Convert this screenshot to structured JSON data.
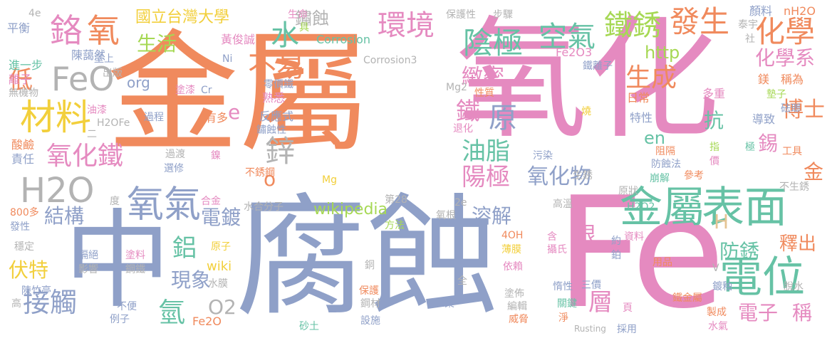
{
  "colors": {
    "orange": "#f08a5d",
    "pink": "#e58ac0",
    "blue": "#8fa0c8",
    "green": "#66c2a5",
    "yellow": "#f2cf3b",
    "olive": "#a6d854",
    "gray": "#b3b3b3",
    "tan": "#e5c494"
  },
  "words": [
    {
      "t": "金屬",
      "c": "orange"
    },
    {
      "t": "氧化",
      "c": "pink"
    },
    {
      "t": "腐蝕",
      "c": "blue"
    },
    {
      "t": "Fe",
      "c": "pink"
    },
    {
      "t": "中",
      "c": "blue"
    },
    {
      "t": "金屬",
      "c": "green"
    },
    {
      "t": "表面",
      "c": "green"
    },
    {
      "t": "電位",
      "c": "green"
    },
    {
      "t": "H2O",
      "c": "gray"
    },
    {
      "t": "FeO",
      "c": "gray"
    },
    {
      "t": "氧氣",
      "c": "blue"
    },
    {
      "t": "鉻",
      "c": "pink"
    },
    {
      "t": "氧",
      "c": "orange"
    },
    {
      "t": "材料",
      "c": "yellow"
    },
    {
      "t": "氧化鐵",
      "c": "pink"
    },
    {
      "t": "國立台灣大學",
      "c": "yellow"
    },
    {
      "t": "生活",
      "c": "olive"
    },
    {
      "t": "水",
      "c": "green"
    },
    {
      "t": "不易",
      "c": "orange"
    },
    {
      "t": "環境",
      "c": "pink"
    },
    {
      "t": "陰極",
      "c": "green"
    },
    {
      "t": "空氣",
      "c": "green"
    },
    {
      "t": "鐵銹",
      "c": "olive"
    },
    {
      "t": "發生",
      "c": "orange"
    },
    {
      "t": "化學",
      "c": "orange"
    },
    {
      "t": "化學系",
      "c": "pink"
    },
    {
      "t": "http",
      "c": "olive"
    },
    {
      "t": "鏽蝕",
      "c": "gray"
    },
    {
      "t": "緻密",
      "c": "pink"
    },
    {
      "t": "原",
      "c": "blue"
    },
    {
      "t": "生成",
      "c": "orange"
    },
    {
      "t": "鐵",
      "c": "pink"
    },
    {
      "t": "鋅",
      "c": "gray"
    },
    {
      "t": "油脂",
      "c": "green"
    },
    {
      "t": "陽極",
      "c": "pink"
    },
    {
      "t": "氧化物",
      "c": "blue"
    },
    {
      "t": "博士",
      "c": "orange"
    },
    {
      "t": "抗",
      "c": "green"
    },
    {
      "t": "錫",
      "c": "pink"
    },
    {
      "t": "en",
      "c": "green"
    },
    {
      "t": "金",
      "c": "orange"
    },
    {
      "t": "結構",
      "c": "blue"
    },
    {
      "t": "電鍍",
      "c": "blue"
    },
    {
      "t": "溶解",
      "c": "blue"
    },
    {
      "t": "鋁",
      "c": "green"
    },
    {
      "t": "現象",
      "c": "blue"
    },
    {
      "t": "伏特",
      "c": "yellow"
    },
    {
      "t": "接觸",
      "c": "blue"
    },
    {
      "t": "氫",
      "c": "green"
    },
    {
      "t": "O2",
      "c": "gray"
    },
    {
      "t": "wiki",
      "c": "yellow"
    },
    {
      "t": "銀",
      "c": "pink"
    },
    {
      "t": "防銹",
      "c": "green"
    },
    {
      "t": "釋出",
      "c": "orange"
    },
    {
      "t": "層",
      "c": "pink"
    },
    {
      "t": "電子",
      "c": "pink"
    },
    {
      "t": "稱",
      "c": "pink"
    },
    {
      "t": "wikipedia",
      "c": "olive"
    },
    {
      "t": "低",
      "c": "orange"
    },
    {
      "t": "e",
      "c": "pink"
    },
    {
      "t": "o",
      "c": "orange"
    },
    {
      "t": "org",
      "c": "blue"
    },
    {
      "t": "H",
      "c": "tan"
    },
    {
      "t": "4e",
      "c": "gray"
    },
    {
      "t": "平衡",
      "c": "blue"
    },
    {
      "t": "陳藹然",
      "c": "blue"
    },
    {
      "t": "進一步",
      "c": "green"
    },
    {
      "t": "離子",
      "c": "pink"
    },
    {
      "t": "無機物",
      "c": "gray"
    },
    {
      "t": "塗上",
      "c": "blue"
    },
    {
      "t": "出版",
      "c": "gray"
    },
    {
      "t": "生命",
      "c": "pink"
    },
    {
      "t": "具",
      "c": "olive"
    },
    {
      "t": "黃俊誠",
      "c": "pink"
    },
    {
      "t": "Corrosion",
      "c": "green"
    },
    {
      "t": "Corrosion3",
      "c": "gray"
    },
    {
      "t": "保護性",
      "c": "gray"
    },
    {
      "t": "步驟",
      "c": "gray"
    },
    {
      "t": "顏料",
      "c": "blue"
    },
    {
      "t": "nH2O",
      "c": "orange"
    },
    {
      "t": "泰宇",
      "c": "gray"
    },
    {
      "t": "社",
      "c": "gray"
    },
    {
      "t": "Fe2O3",
      "c": "pink"
    },
    {
      "t": "鐵離子",
      "c": "blue"
    },
    {
      "t": "鎂",
      "c": "orange"
    },
    {
      "t": "稱為",
      "c": "orange"
    },
    {
      "t": "Ni",
      "c": "blue"
    },
    {
      "t": "塗漆",
      "c": "pink"
    },
    {
      "t": "Cr",
      "c": "blue"
    },
    {
      "t": "零價鐵",
      "c": "blue"
    },
    {
      "t": "Mg2",
      "c": "gray"
    },
    {
      "t": "性質",
      "c": "orange"
    },
    {
      "t": "熟悉",
      "c": "pink"
    },
    {
      "t": "日常",
      "c": "orange"
    },
    {
      "t": "多重",
      "c": "pink"
    },
    {
      "t": "墊子",
      "c": "olive"
    },
    {
      "t": "砝瑯",
      "c": "blue"
    },
    {
      "t": "油漆",
      "c": "pink"
    },
    {
      "t": "過程",
      "c": "blue"
    },
    {
      "t": "有多",
      "c": "orange"
    },
    {
      "t": "反應式",
      "c": "blue"
    },
    {
      "t": "鏽蝕性",
      "c": "blue"
    },
    {
      "t": "H2OFe",
      "c": "gray"
    },
    {
      "t": "二",
      "c": "gray"
    },
    {
      "t": "燒",
      "c": "yellow"
    },
    {
      "t": "退化",
      "c": "pink"
    },
    {
      "t": "特性",
      "c": "blue"
    },
    {
      "t": "導致",
      "c": "blue"
    },
    {
      "t": "極",
      "c": "green"
    },
    {
      "t": "酸鹼",
      "c": "orange"
    },
    {
      "t": "責任",
      "c": "blue"
    },
    {
      "t": "過渡",
      "c": "gray"
    },
    {
      "t": "選修",
      "c": "blue"
    },
    {
      "t": "鎳",
      "c": "pink"
    },
    {
      "t": "阻隔",
      "c": "orange"
    },
    {
      "t": "防蝕法",
      "c": "blue"
    },
    {
      "t": "指",
      "c": "olive"
    },
    {
      "t": "價",
      "c": "pink"
    },
    {
      "t": "工具",
      "c": "orange"
    },
    {
      "t": "不銹鋼",
      "c": "orange"
    },
    {
      "t": "污染",
      "c": "blue"
    },
    {
      "t": "生銹",
      "c": "gray"
    },
    {
      "t": "崩解",
      "c": "green"
    },
    {
      "t": "參考",
      "c": "orange"
    },
    {
      "t": "Mg",
      "c": "yellow"
    },
    {
      "t": "不生銹",
      "c": "gray"
    },
    {
      "t": "第28",
      "c": "gray"
    },
    {
      "t": "2e",
      "c": "gray"
    },
    {
      "t": "原狀",
      "c": "gray"
    },
    {
      "t": "H2O2",
      "c": "green"
    },
    {
      "t": "800多",
      "c": "orange"
    },
    {
      "t": "度",
      "c": "gray"
    },
    {
      "t": "合金",
      "c": "pink"
    },
    {
      "t": "水合分子",
      "c": "gray"
    },
    {
      "t": "氧根",
      "c": "gray"
    },
    {
      "t": "高溫",
      "c": "gray"
    },
    {
      "t": "發性",
      "c": "blue"
    },
    {
      "t": "方法",
      "c": "olive"
    },
    {
      "t": "4OH",
      "c": "orange"
    },
    {
      "t": "穩定",
      "c": "gray"
    },
    {
      "t": "隔絕",
      "c": "blue"
    },
    {
      "t": "塗料",
      "c": "pink"
    },
    {
      "t": "原子",
      "c": "yellow"
    },
    {
      "t": "含",
      "c": "pink"
    },
    {
      "t": "約",
      "c": "blue"
    },
    {
      "t": "資料",
      "c": "pink"
    },
    {
      "t": "影響",
      "c": "gray"
    },
    {
      "t": "鋼鐵",
      "c": "gray"
    },
    {
      "t": "水膜",
      "c": "gray"
    },
    {
      "t": "薄膜",
      "c": "yellow"
    },
    {
      "t": "攝氏",
      "c": "pink"
    },
    {
      "t": "鉑",
      "c": "blue"
    },
    {
      "t": "銅",
      "c": "gray"
    },
    {
      "t": "依賴",
      "c": "pink"
    },
    {
      "t": "用品",
      "c": "orange"
    },
    {
      "t": "V",
      "c": "gray"
    },
    {
      "t": "陳竹亭",
      "c": "blue"
    },
    {
      "t": "保護",
      "c": "orange"
    },
    {
      "t": "全",
      "c": "gray"
    },
    {
      "t": "惰性",
      "c": "blue"
    },
    {
      "t": "三價",
      "c": "blue"
    },
    {
      "t": "鍍釉",
      "c": "blue"
    },
    {
      "t": "脫水",
      "c": "gray"
    },
    {
      "t": "高",
      "c": "gray"
    },
    {
      "t": "不便",
      "c": "blue"
    },
    {
      "t": "塗佈",
      "c": "gray"
    },
    {
      "t": "工業",
      "c": "blue"
    },
    {
      "t": "鐵金屬",
      "c": "orange"
    },
    {
      "t": "製成",
      "c": "orange"
    },
    {
      "t": "例子",
      "c": "blue"
    },
    {
      "t": "鋼材",
      "c": "gray"
    },
    {
      "t": "編輯",
      "c": "gray"
    },
    {
      "t": "關鍵",
      "c": "green"
    },
    {
      "t": "頁",
      "c": "pink"
    },
    {
      "t": "Fe2O",
      "c": "orange"
    },
    {
      "t": "設施",
      "c": "blue"
    },
    {
      "t": "砂土",
      "c": "green"
    },
    {
      "t": "威脅",
      "c": "orange"
    },
    {
      "t": "淨",
      "c": "orange"
    },
    {
      "t": "Rusting",
      "c": "gray"
    },
    {
      "t": "採用",
      "c": "blue"
    },
    {
      "t": "水氣",
      "c": "pink"
    }
  ]
}
